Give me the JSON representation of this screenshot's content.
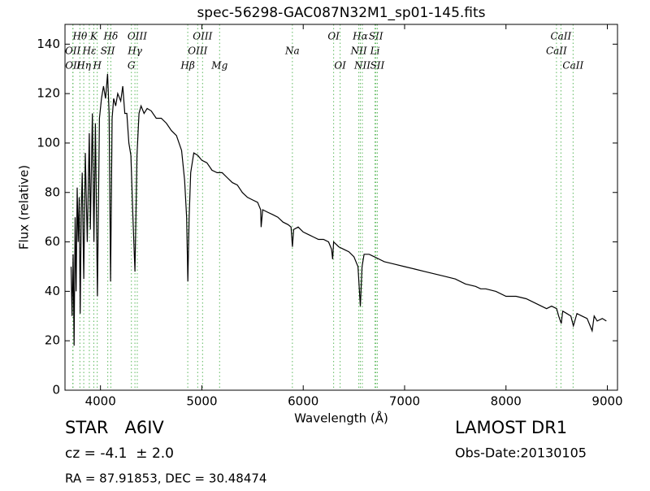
{
  "chart_data": {
    "type": "line",
    "title": "spec-56298-GAC087N32M1_sp01-145.fits",
    "x_label": "Wavelength (Å)",
    "y_label": "Flux (relative)",
    "xlim": [
      3650,
      9100
    ],
    "ylim": [
      0,
      148
    ],
    "xticks": [
      4000,
      5000,
      6000,
      7000,
      8000,
      9000
    ],
    "yticks": [
      0,
      20,
      40,
      60,
      80,
      100,
      120,
      140
    ],
    "color": "#000000",
    "line_color": "#5cb85c",
    "x": [
      3710,
      3720,
      3730,
      3740,
      3750,
      3760,
      3770,
      3780,
      3790,
      3800,
      3810,
      3820,
      3835,
      3850,
      3870,
      3890,
      3900,
      3920,
      3935,
      3950,
      3970,
      3990,
      4010,
      4030,
      4050,
      4070,
      4085,
      4100,
      4115,
      4130,
      4150,
      4170,
      4200,
      4220,
      4240,
      4260,
      4280,
      4300,
      4320,
      4340,
      4360,
      4380,
      4400,
      4430,
      4460,
      4500,
      4550,
      4600,
      4650,
      4700,
      4750,
      4800,
      4830,
      4850,
      4862,
      4875,
      4890,
      4920,
      4960,
      5000,
      5050,
      5100,
      5150,
      5200,
      5250,
      5300,
      5350,
      5400,
      5450,
      5500,
      5550,
      5580,
      5585,
      5600,
      5650,
      5700,
      5750,
      5800,
      5850,
      5880,
      5893,
      5905,
      5950,
      6000,
      6050,
      6100,
      6150,
      6200,
      6250,
      6280,
      6290,
      6300,
      6350,
      6400,
      6450,
      6500,
      6540,
      6563,
      6580,
      6600,
      6650,
      6700,
      6750,
      6800,
      6900,
      7000,
      7100,
      7200,
      7300,
      7400,
      7500,
      7600,
      7700,
      7750,
      7800,
      7900,
      8000,
      8100,
      8200,
      8300,
      8400,
      8450,
      8500,
      8520,
      8545,
      8560,
      8600,
      8640,
      8665,
      8700,
      8750,
      8800,
      8820,
      8850,
      8870,
      8900,
      8950,
      8990
    ],
    "values": [
      50,
      30,
      55,
      18,
      70,
      40,
      82,
      60,
      78,
      31,
      72,
      88,
      45,
      96,
      60,
      104,
      65,
      112,
      60,
      108,
      38,
      110,
      118,
      123,
      118,
      128,
      112,
      44,
      110,
      118,
      115,
      120,
      117,
      123,
      112,
      112,
      100,
      95,
      70,
      48,
      95,
      112,
      115,
      112,
      114,
      113,
      110,
      110,
      108,
      105,
      103,
      97,
      85,
      70,
      44,
      70,
      88,
      96,
      95,
      93,
      92,
      89,
      88,
      88,
      86,
      84,
      83,
      80,
      78,
      77,
      76,
      73,
      66,
      73,
      72,
      71,
      70,
      68,
      67,
      66,
      58,
      65,
      66,
      64,
      63,
      62,
      61,
      61,
      60,
      57,
      53,
      60,
      58,
      57,
      56,
      54,
      50,
      34,
      50,
      55,
      55,
      54,
      53,
      52,
      51,
      50,
      49,
      48,
      47,
      46,
      45,
      43,
      42,
      41,
      41,
      40,
      38,
      38,
      37,
      35,
      33,
      34,
      33,
      30,
      27,
      32,
      31,
      30,
      26,
      31,
      30,
      29,
      27,
      24,
      30,
      28,
      29,
      28
    ],
    "spectral_lines": [
      [
        {
          "label": "Hθ",
          "x": 3797
        },
        {
          "label": "K",
          "x": 3934
        },
        {
          "label": "Hδ",
          "x": 4102
        },
        {
          "label": "OIII",
          "x": 4363
        },
        {
          "label": "OIII",
          "x": 5007
        },
        {
          "label": "OI",
          "x": 6300
        },
        {
          "label": "Hα",
          "x": 6563
        },
        {
          "label": "SII",
          "x": 6717
        },
        {
          "label": "CaII",
          "x": 8542
        }
      ],
      [
        {
          "label": "OII",
          "x": 3727
        },
        {
          "label": "Hε",
          "x": 3890
        },
        {
          "label": "SII",
          "x": 4072
        },
        {
          "label": "Hγ",
          "x": 4340
        },
        {
          "label": "OIII",
          "x": 4959
        },
        {
          "label": "Na",
          "x": 5893
        },
        {
          "label": "NII",
          "x": 6548
        },
        {
          "label": "Li",
          "x": 6708
        },
        {
          "label": "CaII",
          "x": 8498
        }
      ],
      [
        {
          "label": "OII",
          "x": 3729
        },
        {
          "label": "Hη",
          "x": 3835
        },
        {
          "label": "H",
          "x": 3968
        },
        {
          "label": "G",
          "x": 4305
        },
        {
          "label": "Hβ",
          "x": 4861
        },
        {
          "label": "Mg",
          "x": 5175
        },
        {
          "label": "OI",
          "x": 6364
        },
        {
          "label": "NII",
          "x": 6583
        },
        {
          "label": "SII",
          "x": 6731
        },
        {
          "label": "CaII",
          "x": 8662
        }
      ]
    ],
    "annotations": {
      "object": "STAR   A6IV",
      "redshift": "cz = -4.1  ± 2.0",
      "coords": "RA = 87.91853, DEC = 30.48474",
      "survey": "LAMOST DR1",
      "obs_date": "Obs-Date:20130105"
    }
  }
}
